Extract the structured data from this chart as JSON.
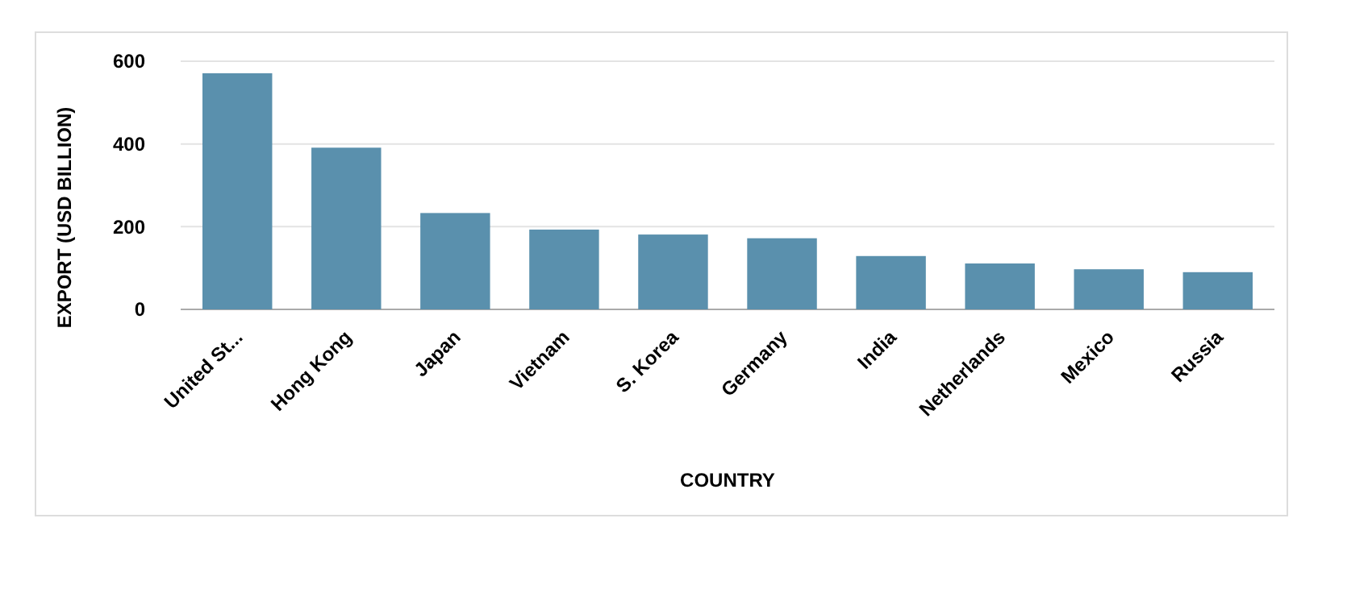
{
  "chart_data": {
    "type": "bar",
    "xlabel": "COUNTRY",
    "ylabel": "EXPORT (USD BILLION)",
    "categories": [
      "United St...",
      "Hong Kong",
      "Japan",
      "Vietnam",
      "S. Korea",
      "Germany",
      "India",
      "Netherlands",
      "Mexico",
      "Russia"
    ],
    "values": [
      571,
      391,
      233,
      193,
      181,
      172,
      129,
      111,
      97,
      90
    ],
    "color": "#5a90ad",
    "ylim": [
      0,
      600
    ],
    "yticks": [
      0,
      200,
      400,
      600
    ],
    "grid": "y"
  }
}
